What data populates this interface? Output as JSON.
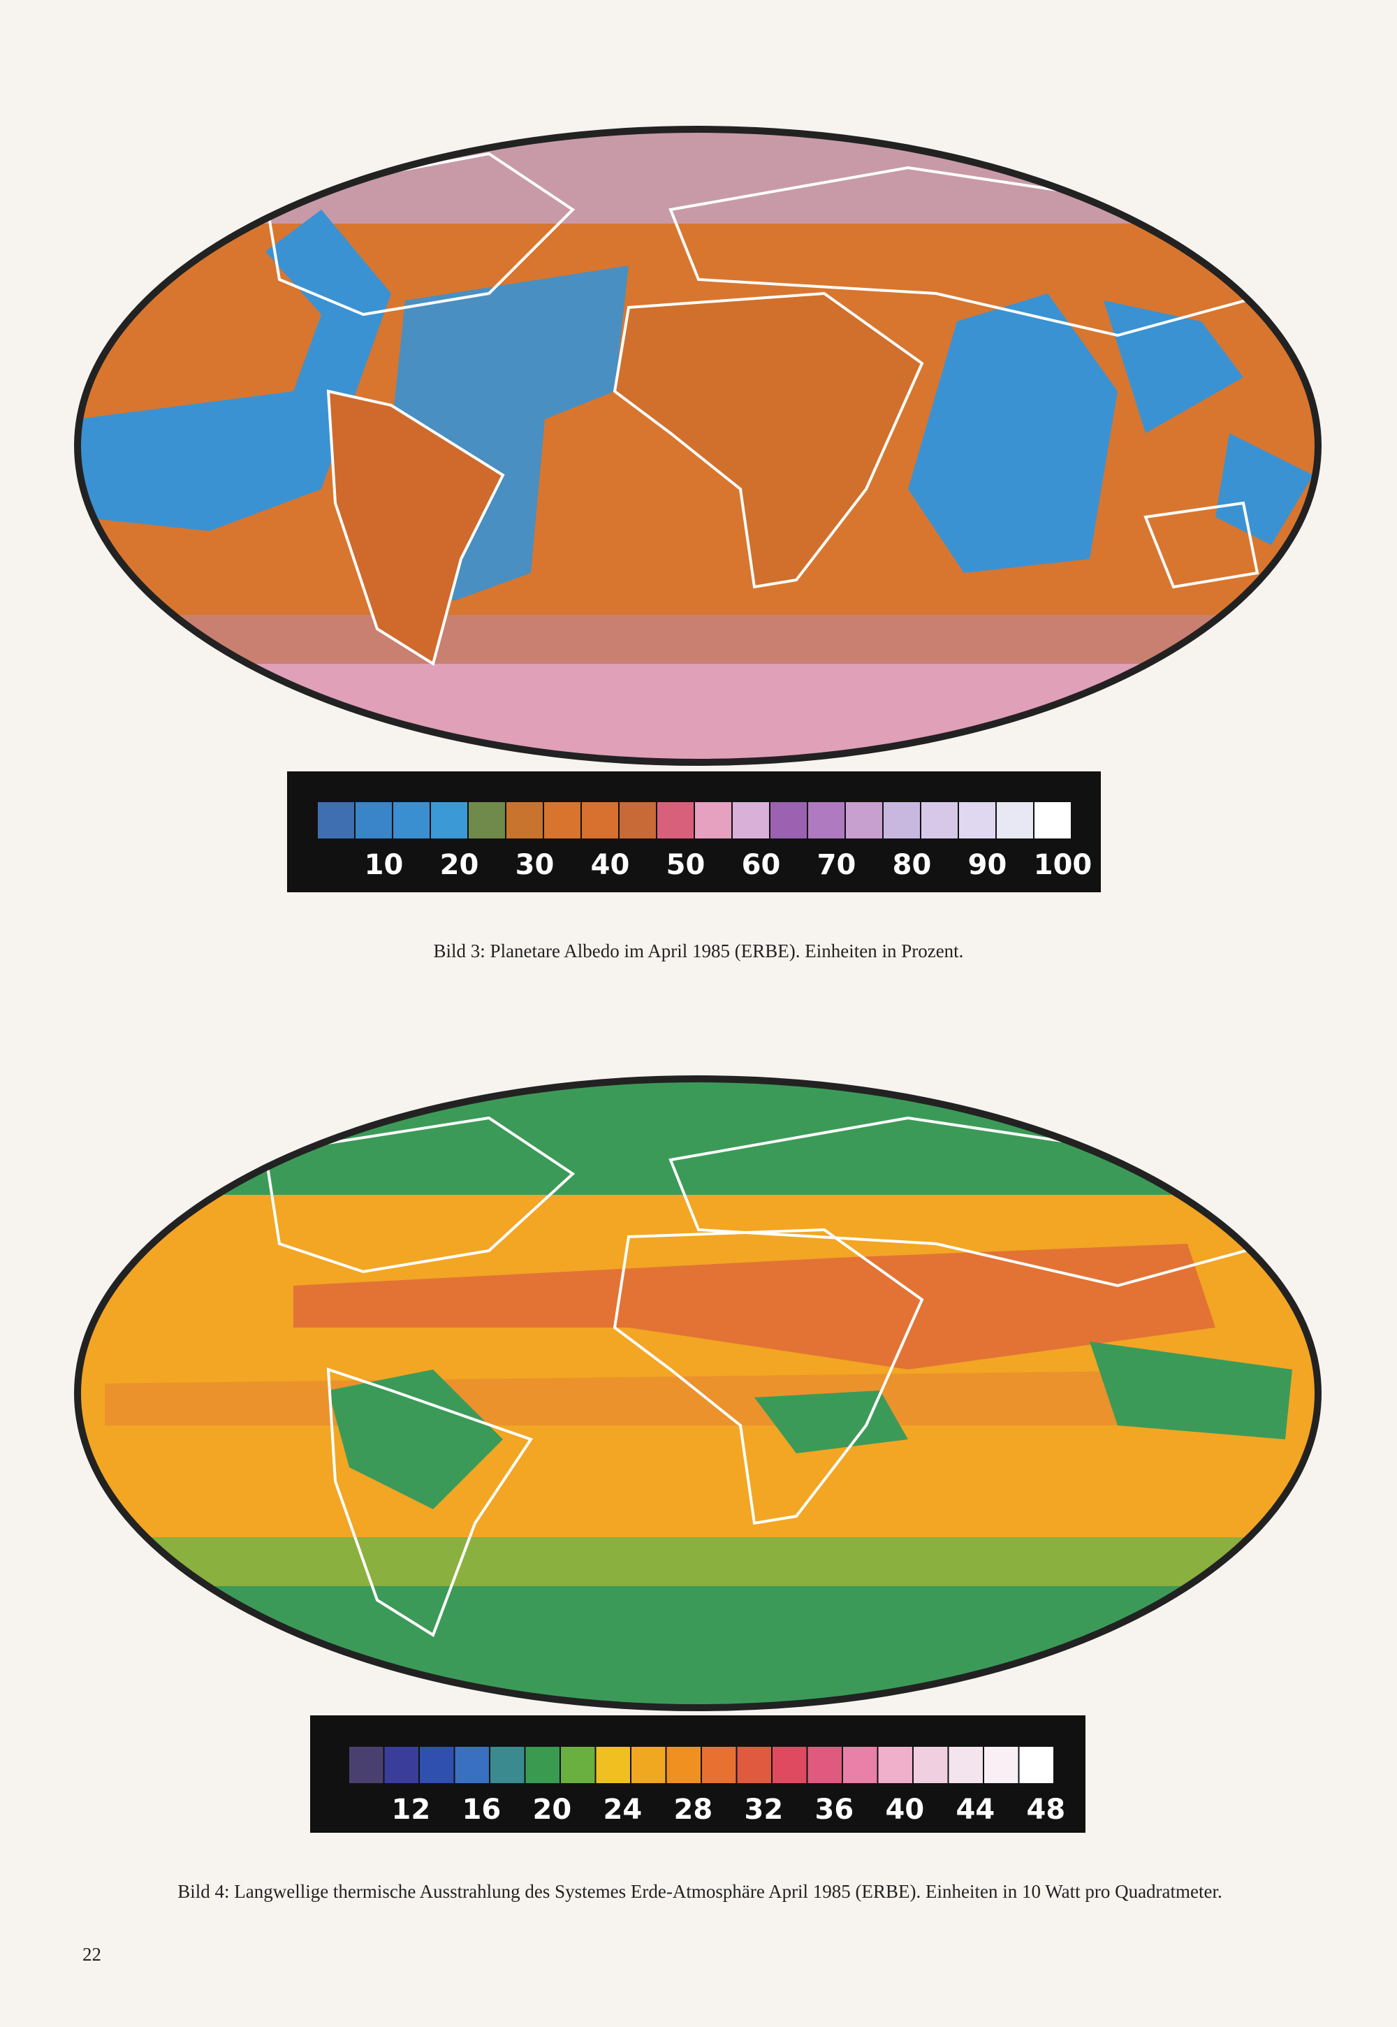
{
  "page_number": "22",
  "figures": [
    {
      "colorbar": {
        "colors": [
          "#3f6fb0",
          "#3a84c8",
          "#3a8fd0",
          "#3b9ad6",
          "#6f8a4a",
          "#c8742e",
          "#d9742e",
          "#d87030",
          "#c86a38",
          "#d9607a",
          "#e6a0c0",
          "#d9b0d8",
          "#9a62b0",
          "#b07ac0",
          "#c8a0d0",
          "#c8b8e0",
          "#d8c8e8",
          "#e0d8f0",
          "#e8e8f4",
          "#ffffff"
        ],
        "ticks": [
          "10",
          "20",
          "30",
          "40",
          "50",
          "60",
          "70",
          "80",
          "90",
          "100"
        ]
      },
      "caption": "Bild 3: Planetare Albedo im April 1985 (ERBE). Einheiten in Prozent."
    },
    {
      "colorbar": {
        "colors": [
          "#4a4070",
          "#3a3e9a",
          "#3050b0",
          "#3a70c0",
          "#3a8a90",
          "#3a9a50",
          "#6ab040",
          "#f0c020",
          "#f0a820",
          "#f09020",
          "#e87030",
          "#e05a40",
          "#e04a60",
          "#e05a80",
          "#e880a8",
          "#f0b0cc",
          "#f0d0e0",
          "#f4e4ee",
          "#f8f0f4",
          "#ffffff"
        ],
        "ticks": [
          "12",
          "16",
          "20",
          "24",
          "28",
          "32",
          "36",
          "40",
          "44",
          "48"
        ]
      },
      "caption": "Bild 4: Langwellige thermische Ausstrahlung des Systemes Erde-Atmosphäre April 1985 (ERBE). Einheiten in 10 Watt pro Quadratmeter."
    }
  ]
}
